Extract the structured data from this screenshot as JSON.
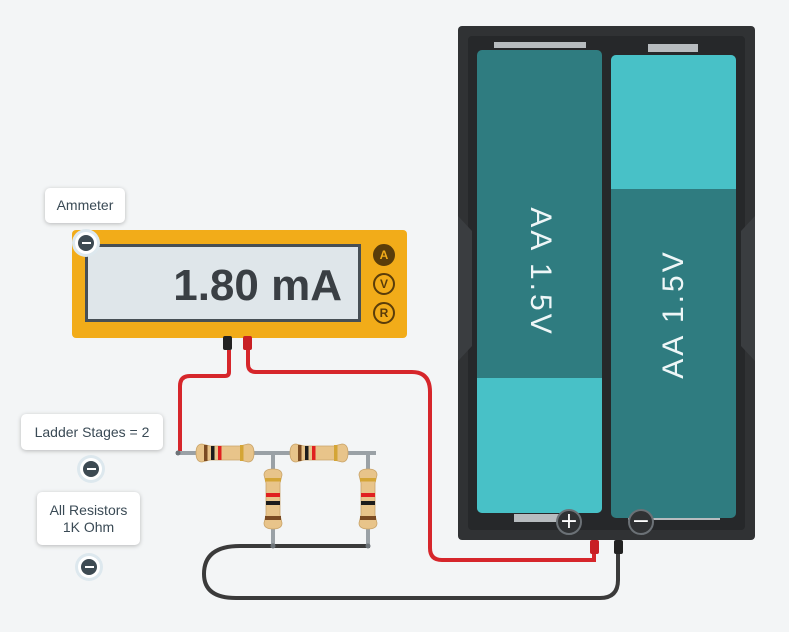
{
  "ammeter": {
    "tooltip": "Ammeter",
    "reading": "1.80 mA",
    "modes": [
      "A",
      "V",
      "R"
    ],
    "active_mode": "A"
  },
  "ladder_stages": {
    "label": "Ladder Stages = 2"
  },
  "resistors": {
    "label_line1": "All Resistors",
    "label_line2": "1K Ohm"
  },
  "battery": {
    "cells": [
      {
        "label": "AA 1.5V"
      },
      {
        "label": "AA 1.5V"
      }
    ],
    "plus_symbol": "+",
    "minus_symbol": "−"
  },
  "colors": {
    "wire_positive": "#d6262b",
    "wire_negative": "#3a3a3a",
    "meter_body": "#f2ac19",
    "cell_dark": "#2f7c80",
    "cell_light": "#48c1c7",
    "holder": "#303234"
  }
}
